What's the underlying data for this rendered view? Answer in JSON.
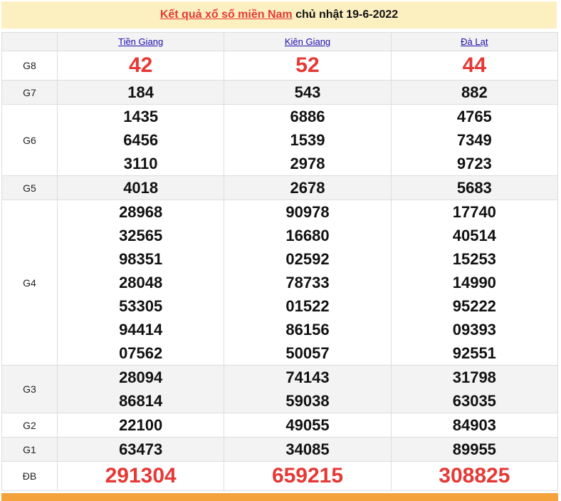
{
  "title": {
    "link": "Kết quả xổ số miền Nam",
    "rest": " chủ nhật 19-6-2022"
  },
  "provinces": [
    "Tiền Giang",
    "Kiên Giang",
    "Đà Lạt"
  ],
  "prizes": [
    {
      "label": "G8",
      "big": true,
      "values": [
        [
          "42"
        ],
        [
          "52"
        ],
        [
          "44"
        ]
      ]
    },
    {
      "label": "G7",
      "values": [
        [
          "184"
        ],
        [
          "543"
        ],
        [
          "882"
        ]
      ]
    },
    {
      "label": "G6",
      "values": [
        [
          "1435",
          "6456",
          "3110"
        ],
        [
          "6886",
          "1539",
          "2978"
        ],
        [
          "4765",
          "7349",
          "9723"
        ]
      ]
    },
    {
      "label": "G5",
      "values": [
        [
          "4018"
        ],
        [
          "2678"
        ],
        [
          "5683"
        ]
      ]
    },
    {
      "label": "G4",
      "values": [
        [
          "28968",
          "32565",
          "98351",
          "28048",
          "53305",
          "94414",
          "07562"
        ],
        [
          "90978",
          "16680",
          "02592",
          "78733",
          "01522",
          "86156",
          "50057"
        ],
        [
          "17740",
          "40514",
          "15253",
          "14990",
          "95222",
          "09393",
          "92551"
        ]
      ]
    },
    {
      "label": "G3",
      "values": [
        [
          "28094",
          "86814"
        ],
        [
          "74143",
          "59038"
        ],
        [
          "31798",
          "63035"
        ]
      ]
    },
    {
      "label": "G2",
      "values": [
        [
          "22100"
        ],
        [
          "49055"
        ],
        [
          "84903"
        ]
      ]
    },
    {
      "label": "G1",
      "values": [
        [
          "63473"
        ],
        [
          "34085"
        ],
        [
          "89955"
        ]
      ]
    },
    {
      "label": "ĐB",
      "big": true,
      "values": [
        [
          "291304"
        ],
        [
          "659215"
        ],
        [
          "308825"
        ]
      ]
    }
  ],
  "colors": {
    "accent": "#e53935",
    "header_bg": "#fdf0c0",
    "footer_bg": "#f4a23c"
  }
}
